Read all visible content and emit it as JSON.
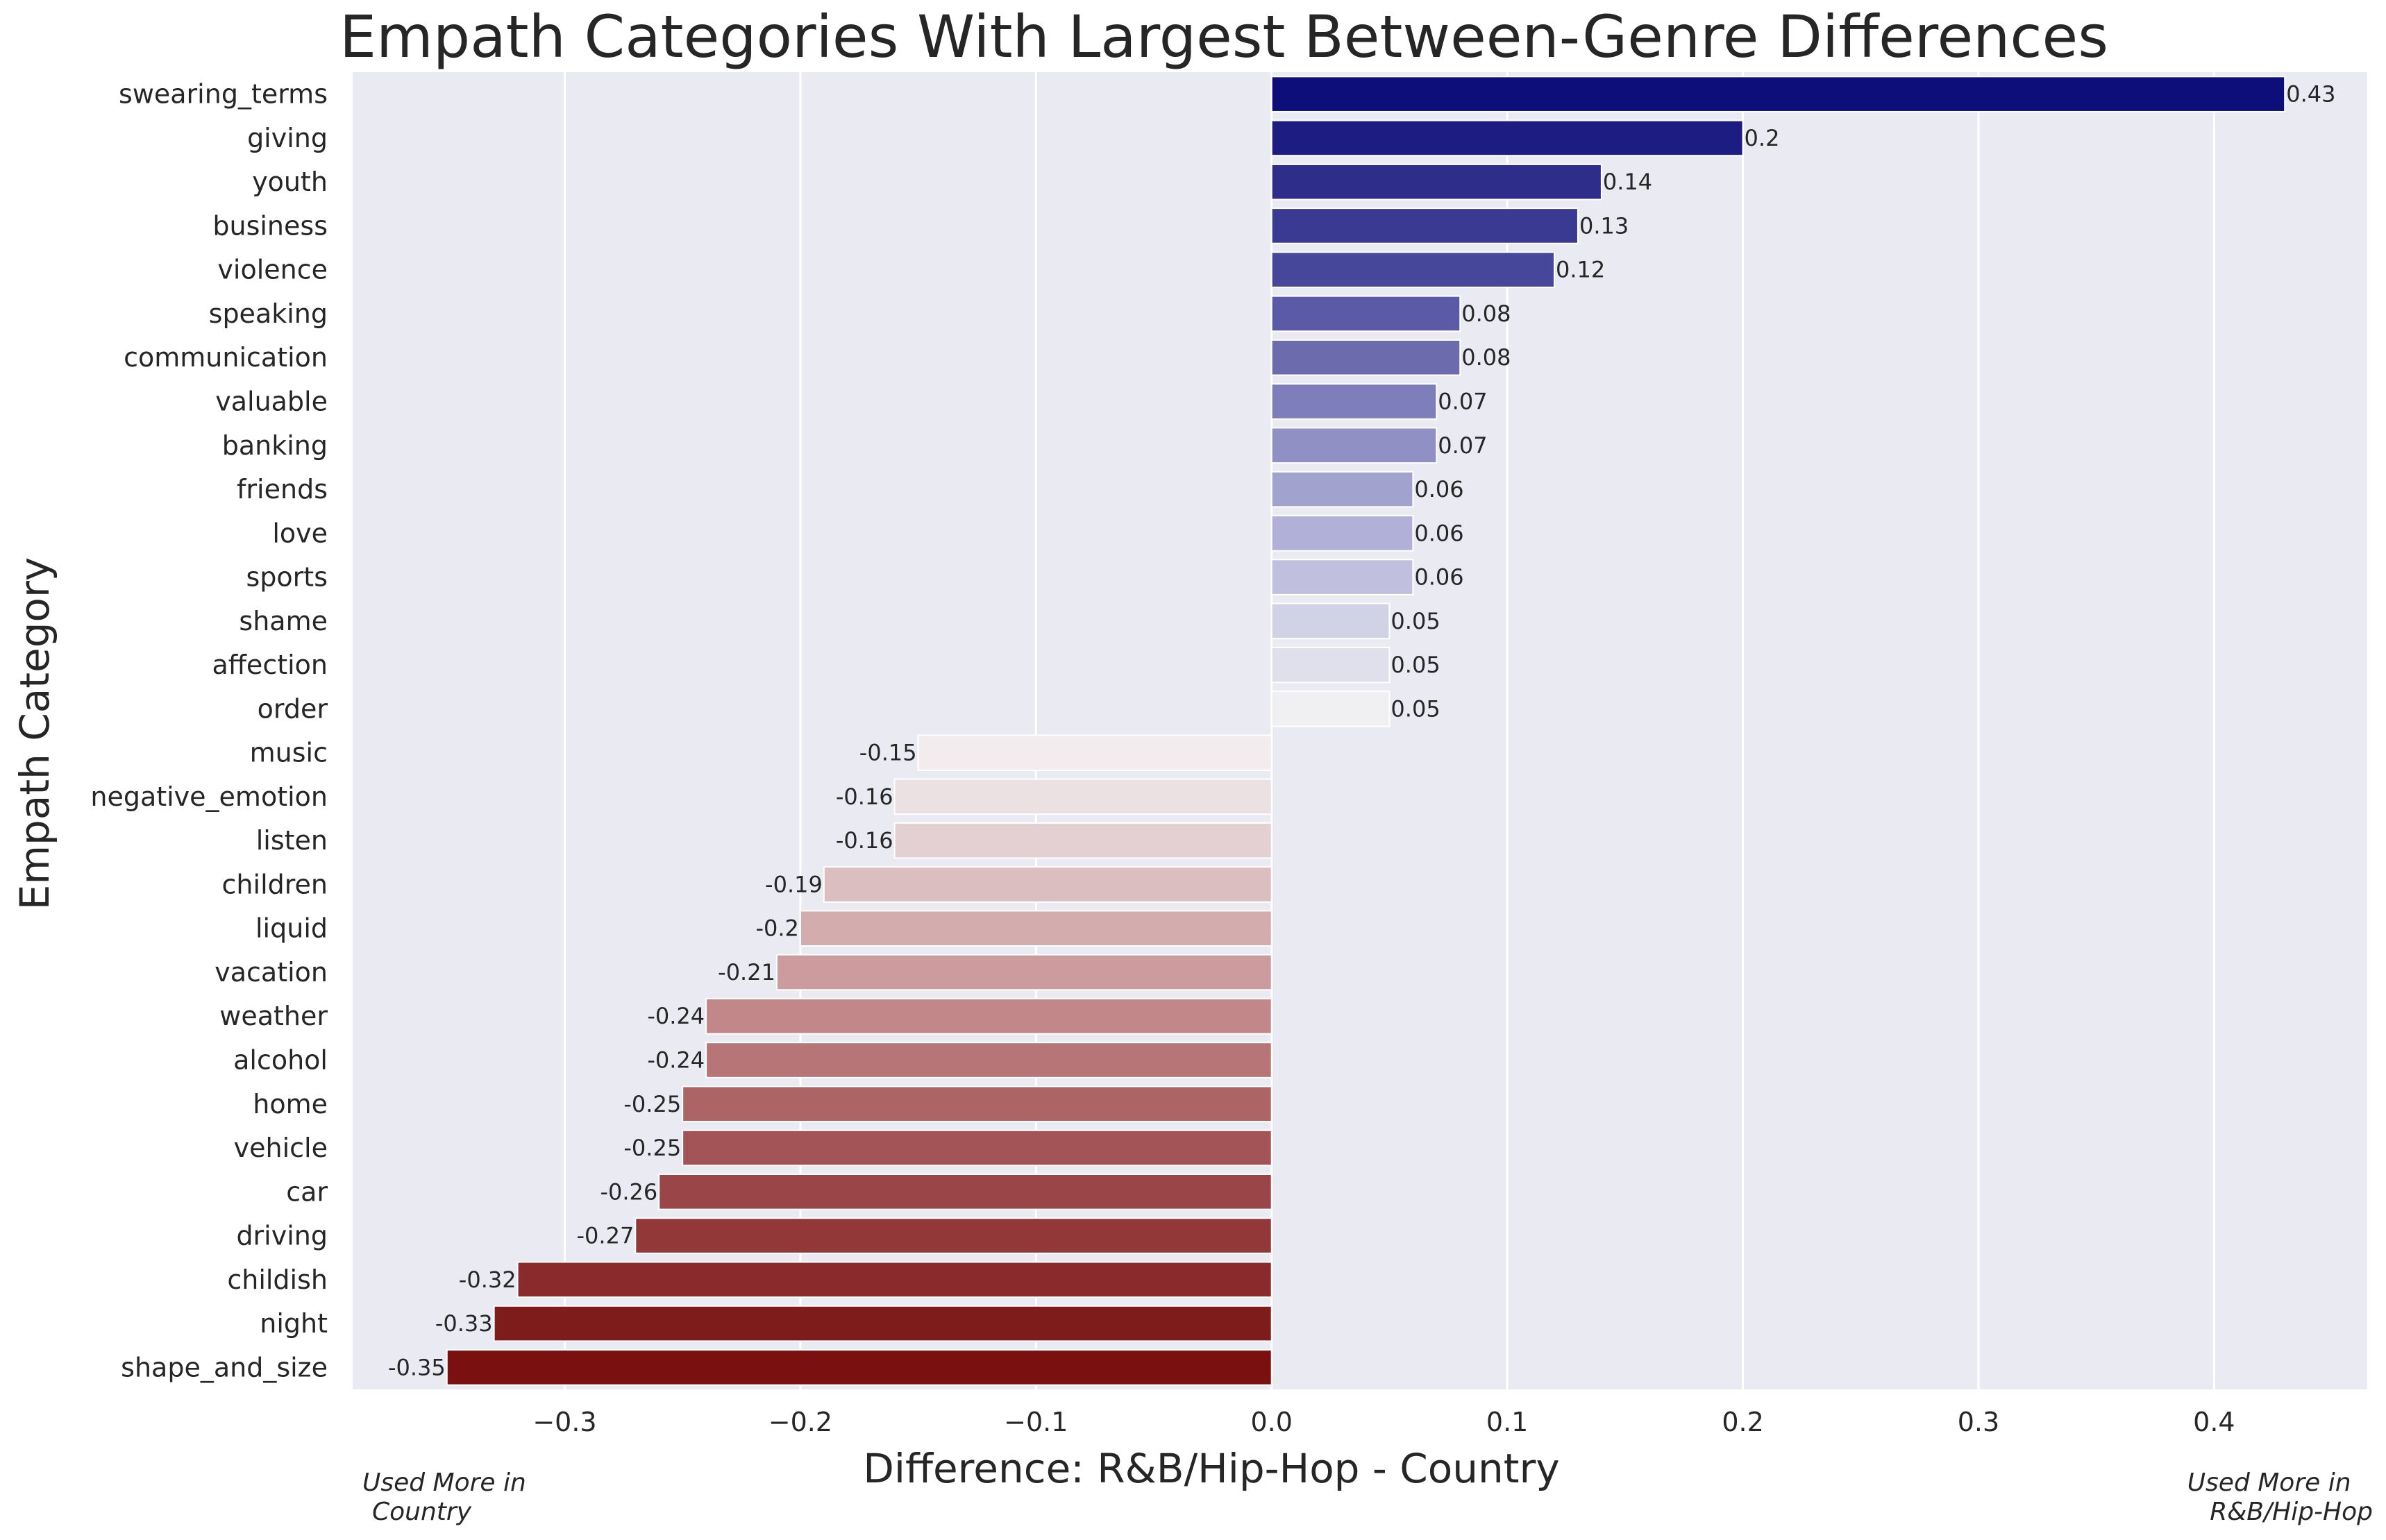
{
  "chart_data": {
    "type": "bar",
    "orientation": "horizontal",
    "title": "Empath Categories With Largest Between-Genre Differences",
    "xlabel": "Difference: R&B/Hip-Hop - Country",
    "ylabel": "Empath Category",
    "xlim": [
      -0.39,
      0.465
    ],
    "xticks": [
      -0.3,
      -0.2,
      -0.1,
      0.0,
      0.1,
      0.2,
      0.3,
      0.4
    ],
    "xtick_labels": [
      "−0.3",
      "−0.2",
      "−0.1",
      "0.0",
      "0.1",
      "0.2",
      "0.3",
      "0.4"
    ],
    "grid": true,
    "categories": [
      "swearing_terms",
      "giving",
      "youth",
      "business",
      "violence",
      "speaking",
      "communication",
      "valuable",
      "banking",
      "friends",
      "love",
      "sports",
      "shame",
      "affection",
      "order",
      "music",
      "negative_emotion",
      "listen",
      "children",
      "liquid",
      "vacation",
      "weather",
      "alcohol",
      "home",
      "vehicle",
      "car",
      "driving",
      "childish",
      "night",
      "shape_and_size"
    ],
    "values": [
      0.43,
      0.2,
      0.14,
      0.13,
      0.12,
      0.08,
      0.08,
      0.07,
      0.07,
      0.06,
      0.06,
      0.06,
      0.05,
      0.05,
      0.05,
      -0.15,
      -0.16,
      -0.16,
      -0.19,
      -0.2,
      -0.21,
      -0.24,
      -0.24,
      -0.25,
      -0.25,
      -0.26,
      -0.27,
      -0.32,
      -0.33,
      -0.35
    ],
    "value_labels": [
      "0.43",
      "0.2",
      "0.14",
      "0.13",
      "0.12",
      "0.08",
      "0.08",
      "0.07",
      "0.07",
      "0.06",
      "0.06",
      "0.06",
      "0.05",
      "0.05",
      "0.05",
      "-0.15",
      "-0.16",
      "-0.16",
      "-0.19",
      "-0.2",
      "-0.21",
      "-0.24",
      "-0.24",
      "-0.25",
      "-0.25",
      "-0.26",
      "-0.27",
      "-0.32",
      "-0.33",
      "-0.35"
    ],
    "colors": [
      "#0e0e7a",
      "#1c1c82",
      "#2e2e8a",
      "#3a3a92",
      "#46469a",
      "#5a5aa6",
      "#6b6bae",
      "#7e7eba",
      "#9090c4",
      "#a2a2ce",
      "#b0b0d8",
      "#c0c0de",
      "#d2d2e6",
      "#e0e0ec",
      "#f0f0f2",
      "#f2ecee",
      "#ebe0e2",
      "#e3d0d3",
      "#dbbfc0",
      "#d3adad",
      "#cb9b9d",
      "#c28889",
      "#b87577",
      "#ac6465",
      "#a25456",
      "#9a4648",
      "#933839",
      "#8a2a2c",
      "#7e1c1c",
      "#7a1010"
    ],
    "annotations": {
      "left": "Used More in\n Country",
      "right": "Used More in\n R&B/Hip-Hop"
    },
    "annotation_lines": {
      "left": [
        "Used More in",
        "Country"
      ],
      "right": [
        "Used More in",
        "R&B/Hip-Hop"
      ]
    },
    "plot_background": "#eaeaf2",
    "grid_color": "#ffffff"
  }
}
